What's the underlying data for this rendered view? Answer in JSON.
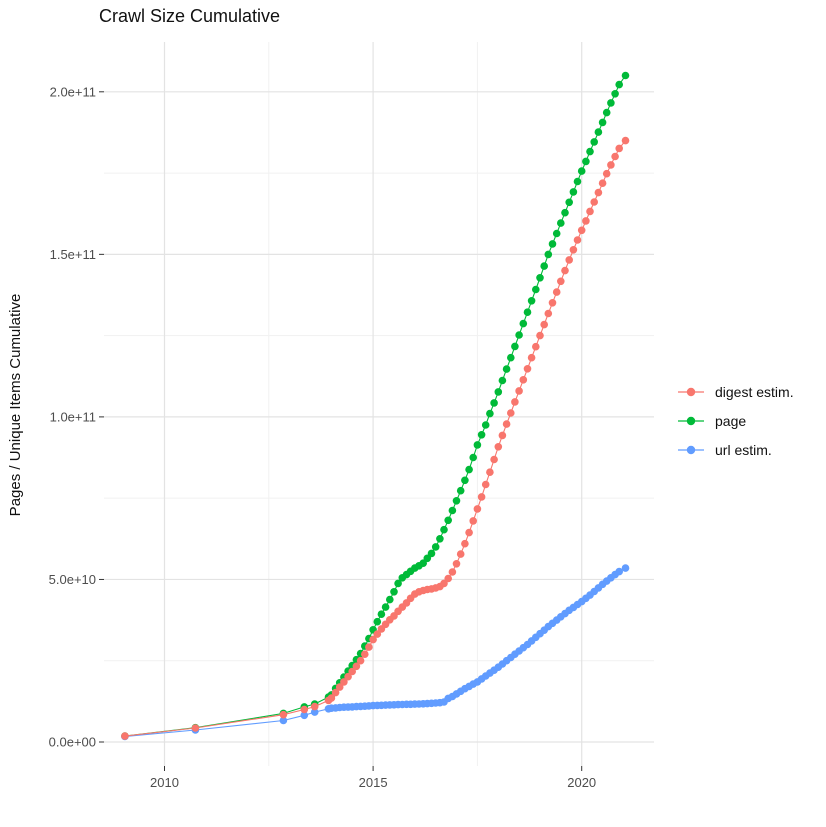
{
  "title": "Crawl Size Cumulative",
  "y_axis_title": "Pages / Unique Items Cumulative",
  "legend": {
    "items": [
      {
        "label": "digest estim.",
        "color": "#F8766D"
      },
      {
        "label": "page",
        "color": "#00BA38"
      },
      {
        "label": "url estim.",
        "color": "#619CFF"
      }
    ]
  },
  "style": {
    "background": "#FFFFFF",
    "major_grid_color": "#E3E3E3",
    "minor_grid_color": "#F1F1F1",
    "tick_mark_color": "#333333",
    "tick_label_color": "#4D4D4D"
  },
  "chart_data": {
    "type": "line",
    "title": "Crawl Size Cumulative",
    "xlabel": "",
    "ylabel": "Pages / Unique Items Cumulative",
    "x_unit": "decimal_year",
    "y_unit": "items_in_billions_1e9",
    "xlim": [
      2008.5,
      2021.8
    ],
    "ylim": [
      -8,
      217
    ],
    "grid": true,
    "legend_position": "right",
    "x_ticks": {
      "values": [
        2010,
        2015,
        2020
      ],
      "labels": [
        "2010",
        "2015",
        "2020"
      ],
      "minor": [
        2012.5,
        2017.5
      ]
    },
    "y_ticks": {
      "values": [
        0,
        50,
        100,
        150,
        200
      ],
      "labels": [
        "0.0e+00",
        "5.0e+10",
        "1.0e+11",
        "1.5e+11",
        "2.0e+11"
      ],
      "minor": [
        25,
        75,
        125,
        175
      ]
    },
    "series": [
      {
        "name": "digest estim.",
        "color": "#F8766D",
        "points": [
          [
            2009.05,
            1.8
          ],
          [
            2010.74,
            4.3
          ],
          [
            2012.85,
            8.4
          ],
          [
            2013.35,
            10.0
          ],
          [
            2013.6,
            10.9
          ],
          [
            2013.93,
            12.8
          ],
          [
            2014.0,
            13.5
          ],
          [
            2014.1,
            15.2
          ],
          [
            2014.2,
            16.9
          ],
          [
            2014.3,
            18.5
          ],
          [
            2014.4,
            20.1
          ],
          [
            2014.5,
            21.7
          ],
          [
            2014.6,
            23.3
          ],
          [
            2014.7,
            25.0
          ],
          [
            2014.8,
            27.0
          ],
          [
            2014.9,
            29.2
          ],
          [
            2015.0,
            31.5
          ],
          [
            2015.1,
            33.2
          ],
          [
            2015.2,
            34.8
          ],
          [
            2015.3,
            36.2
          ],
          [
            2015.4,
            37.6
          ],
          [
            2015.5,
            38.8
          ],
          [
            2015.6,
            40.2
          ],
          [
            2015.7,
            41.5
          ],
          [
            2015.8,
            42.8
          ],
          [
            2015.9,
            44.2
          ],
          [
            2016.0,
            45.5
          ],
          [
            2016.1,
            46.2
          ],
          [
            2016.2,
            46.6
          ],
          [
            2016.3,
            46.9
          ],
          [
            2016.4,
            47.1
          ],
          [
            2016.5,
            47.4
          ],
          [
            2016.6,
            47.8
          ],
          [
            2016.7,
            48.8
          ],
          [
            2016.8,
            50.3
          ],
          [
            2016.9,
            52.3
          ],
          [
            2017.0,
            54.8
          ],
          [
            2017.1,
            57.8
          ],
          [
            2017.2,
            61.0
          ],
          [
            2017.3,
            64.4
          ],
          [
            2017.4,
            68.0
          ],
          [
            2017.5,
            71.7
          ],
          [
            2017.6,
            75.4
          ],
          [
            2017.7,
            79.2
          ],
          [
            2017.8,
            83.0
          ],
          [
            2017.9,
            86.9
          ],
          [
            2018.0,
            90.8
          ],
          [
            2018.1,
            94.3
          ],
          [
            2018.2,
            97.8
          ],
          [
            2018.3,
            101.2
          ],
          [
            2018.4,
            104.6
          ],
          [
            2018.5,
            108.0
          ],
          [
            2018.6,
            111.4
          ],
          [
            2018.7,
            114.8
          ],
          [
            2018.8,
            118.2
          ],
          [
            2018.9,
            121.6
          ],
          [
            2019.0,
            125.0
          ],
          [
            2019.1,
            128.4
          ],
          [
            2019.2,
            131.8
          ],
          [
            2019.3,
            135.1
          ],
          [
            2019.4,
            138.4
          ],
          [
            2019.5,
            141.7
          ],
          [
            2019.6,
            145.0
          ],
          [
            2019.7,
            148.3
          ],
          [
            2019.8,
            151.4
          ],
          [
            2019.9,
            154.4
          ],
          [
            2020.0,
            157.4
          ],
          [
            2020.1,
            160.3
          ],
          [
            2020.2,
            163.2
          ],
          [
            2020.3,
            166.1
          ],
          [
            2020.4,
            169.0
          ],
          [
            2020.5,
            171.9
          ],
          [
            2020.6,
            174.8
          ],
          [
            2020.7,
            177.5
          ],
          [
            2020.8,
            180.1
          ],
          [
            2020.9,
            182.6
          ],
          [
            2021.05,
            185.0
          ]
        ]
      },
      {
        "name": "page",
        "color": "#00BA38",
        "points": [
          [
            2009.05,
            1.8
          ],
          [
            2010.74,
            4.4
          ],
          [
            2012.85,
            8.8
          ],
          [
            2013.35,
            10.8
          ],
          [
            2013.6,
            11.7
          ],
          [
            2013.93,
            13.8
          ],
          [
            2014.0,
            14.5
          ],
          [
            2014.1,
            16.5
          ],
          [
            2014.2,
            18.2
          ],
          [
            2014.3,
            20.0
          ],
          [
            2014.4,
            21.8
          ],
          [
            2014.5,
            23.5
          ],
          [
            2014.6,
            25.3
          ],
          [
            2014.7,
            27.2
          ],
          [
            2014.8,
            29.5
          ],
          [
            2014.9,
            31.8
          ],
          [
            2015.0,
            34.5
          ],
          [
            2015.1,
            37.0
          ],
          [
            2015.2,
            39.3
          ],
          [
            2015.3,
            41.5
          ],
          [
            2015.4,
            43.8
          ],
          [
            2015.5,
            46.2
          ],
          [
            2015.6,
            48.8
          ],
          [
            2015.7,
            50.5
          ],
          [
            2015.8,
            51.5
          ],
          [
            2015.9,
            52.5
          ],
          [
            2016.0,
            53.5
          ],
          [
            2016.1,
            54.2
          ],
          [
            2016.2,
            55.0
          ],
          [
            2016.3,
            56.5
          ],
          [
            2016.4,
            58.0
          ],
          [
            2016.5,
            60.0
          ],
          [
            2016.6,
            62.5
          ],
          [
            2016.7,
            65.3
          ],
          [
            2016.8,
            68.2
          ],
          [
            2016.9,
            71.2
          ],
          [
            2017.0,
            74.2
          ],
          [
            2017.1,
            77.3
          ],
          [
            2017.2,
            80.5
          ],
          [
            2017.3,
            83.8
          ],
          [
            2017.4,
            87.5
          ],
          [
            2017.5,
            91.4
          ],
          [
            2017.6,
            94.5
          ],
          [
            2017.7,
            97.5
          ],
          [
            2017.8,
            101.0
          ],
          [
            2017.9,
            104.3
          ],
          [
            2018.0,
            107.7
          ],
          [
            2018.1,
            111.2
          ],
          [
            2018.2,
            114.7
          ],
          [
            2018.3,
            118.2
          ],
          [
            2018.4,
            121.7
          ],
          [
            2018.5,
            125.2
          ],
          [
            2018.6,
            128.7
          ],
          [
            2018.7,
            132.2
          ],
          [
            2018.8,
            135.7
          ],
          [
            2018.9,
            139.2
          ],
          [
            2019.0,
            142.8
          ],
          [
            2019.1,
            146.4
          ],
          [
            2019.2,
            150.0
          ],
          [
            2019.3,
            153.2
          ],
          [
            2019.4,
            156.4
          ],
          [
            2019.5,
            159.6
          ],
          [
            2019.6,
            162.8
          ],
          [
            2019.7,
            166.0
          ],
          [
            2019.8,
            169.2
          ],
          [
            2019.9,
            172.4
          ],
          [
            2020.0,
            175.6
          ],
          [
            2020.1,
            178.6
          ],
          [
            2020.2,
            181.6
          ],
          [
            2020.3,
            184.6
          ],
          [
            2020.4,
            187.6
          ],
          [
            2020.5,
            190.6
          ],
          [
            2020.6,
            193.6
          ],
          [
            2020.7,
            196.6
          ],
          [
            2020.8,
            199.4
          ],
          [
            2020.9,
            202.2
          ],
          [
            2021.05,
            205.0
          ]
        ]
      },
      {
        "name": "url estim.",
        "color": "#619CFF",
        "points": [
          [
            2009.05,
            1.7
          ],
          [
            2010.74,
            3.7
          ],
          [
            2012.85,
            6.6
          ],
          [
            2013.35,
            8.2
          ],
          [
            2013.6,
            9.2
          ],
          [
            2013.93,
            10.2
          ],
          [
            2014.0,
            10.4
          ],
          [
            2014.1,
            10.5
          ],
          [
            2014.2,
            10.6
          ],
          [
            2014.3,
            10.7
          ],
          [
            2014.4,
            10.75
          ],
          [
            2014.5,
            10.8
          ],
          [
            2014.6,
            10.9
          ],
          [
            2014.7,
            10.95
          ],
          [
            2014.8,
            11.0
          ],
          [
            2014.9,
            11.1
          ],
          [
            2015.0,
            11.2
          ],
          [
            2015.1,
            11.25
          ],
          [
            2015.2,
            11.3
          ],
          [
            2015.3,
            11.35
          ],
          [
            2015.4,
            11.4
          ],
          [
            2015.5,
            11.45
          ],
          [
            2015.6,
            11.5
          ],
          [
            2015.7,
            11.55
          ],
          [
            2015.8,
            11.6
          ],
          [
            2015.9,
            11.6
          ],
          [
            2016.0,
            11.65
          ],
          [
            2016.1,
            11.7
          ],
          [
            2016.2,
            11.75
          ],
          [
            2016.3,
            11.8
          ],
          [
            2016.4,
            11.9
          ],
          [
            2016.5,
            12.0
          ],
          [
            2016.6,
            12.1
          ],
          [
            2016.7,
            12.3
          ],
          [
            2016.8,
            13.4
          ],
          [
            2016.9,
            14.0
          ],
          [
            2017.0,
            14.8
          ],
          [
            2017.1,
            15.6
          ],
          [
            2017.2,
            16.4
          ],
          [
            2017.3,
            17.1
          ],
          [
            2017.4,
            17.8
          ],
          [
            2017.5,
            18.5
          ],
          [
            2017.6,
            19.4
          ],
          [
            2017.7,
            20.3
          ],
          [
            2017.8,
            21.2
          ],
          [
            2017.9,
            22.1
          ],
          [
            2018.0,
            23.0
          ],
          [
            2018.1,
            24.0
          ],
          [
            2018.2,
            25.0
          ],
          [
            2018.3,
            26.0
          ],
          [
            2018.4,
            27.0
          ],
          [
            2018.5,
            28.0
          ],
          [
            2018.6,
            29.0
          ],
          [
            2018.7,
            30.0
          ],
          [
            2018.8,
            31.1
          ],
          [
            2018.9,
            32.2
          ],
          [
            2019.0,
            33.3
          ],
          [
            2019.1,
            34.4
          ],
          [
            2019.2,
            35.5
          ],
          [
            2019.3,
            36.5
          ],
          [
            2019.4,
            37.5
          ],
          [
            2019.5,
            38.5
          ],
          [
            2019.6,
            39.5
          ],
          [
            2019.7,
            40.5
          ],
          [
            2019.8,
            41.4
          ],
          [
            2019.9,
            42.3
          ],
          [
            2020.0,
            43.2
          ],
          [
            2020.1,
            44.2
          ],
          [
            2020.2,
            45.2
          ],
          [
            2020.3,
            46.3
          ],
          [
            2020.4,
            47.4
          ],
          [
            2020.5,
            48.5
          ],
          [
            2020.6,
            49.5
          ],
          [
            2020.7,
            50.5
          ],
          [
            2020.8,
            51.5
          ],
          [
            2020.9,
            52.4
          ],
          [
            2021.05,
            53.5
          ]
        ]
      }
    ]
  }
}
